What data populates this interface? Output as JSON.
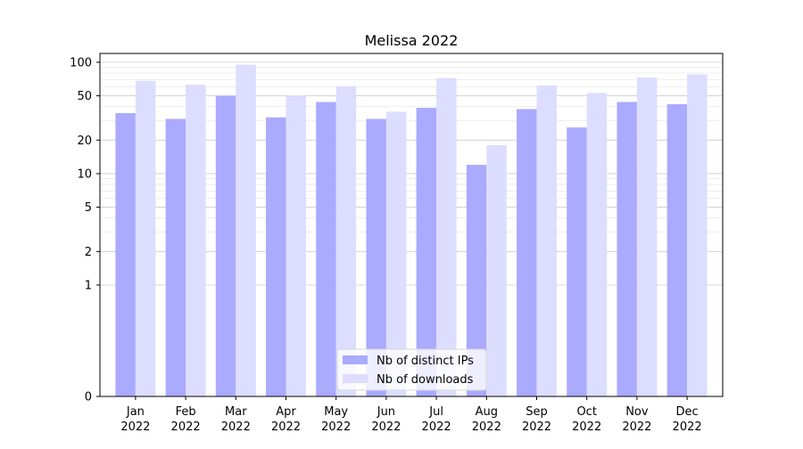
{
  "chart_data": {
    "type": "bar",
    "title": "Melissa 2022",
    "xlabel": "",
    "ylabel": "",
    "yscale": "symlog",
    "ylim": [
      0,
      120
    ],
    "yticks": [
      0,
      1,
      2,
      5,
      10,
      20,
      50,
      100
    ],
    "ytick_labels": [
      "0",
      "1",
      "2",
      "5",
      "10",
      "20",
      "50",
      "100"
    ],
    "categories": [
      {
        "month": "Jan",
        "year": "2022"
      },
      {
        "month": "Feb",
        "year": "2022"
      },
      {
        "month": "Mar",
        "year": "2022"
      },
      {
        "month": "Apr",
        "year": "2022"
      },
      {
        "month": "May",
        "year": "2022"
      },
      {
        "month": "Jun",
        "year": "2022"
      },
      {
        "month": "Jul",
        "year": "2022"
      },
      {
        "month": "Aug",
        "year": "2022"
      },
      {
        "month": "Sep",
        "year": "2022"
      },
      {
        "month": "Oct",
        "year": "2022"
      },
      {
        "month": "Nov",
        "year": "2022"
      },
      {
        "month": "Dec",
        "year": "2022"
      }
    ],
    "series": [
      {
        "name": "Nb of distinct IPs",
        "color": "#aaaaff",
        "values": [
          35,
          31,
          50,
          32,
          44,
          31,
          39,
          12,
          38,
          26,
          44,
          42
        ]
      },
      {
        "name": "Nb of downloads",
        "color": "#ddddff",
        "values": [
          68,
          63,
          95,
          50,
          61,
          36,
          72,
          18,
          62,
          53,
          73,
          78
        ]
      }
    ],
    "grid": true,
    "legend_position": "bottom-center"
  }
}
